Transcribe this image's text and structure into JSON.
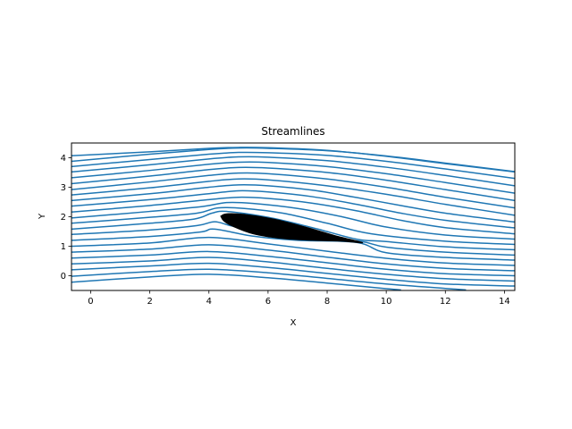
{
  "chart_data": {
    "type": "streamplot",
    "title": "Streamlines",
    "xlabel": "X",
    "ylabel": "Y",
    "xlim": [
      -0.65,
      14.35
    ],
    "ylim": [
      -0.5,
      4.5
    ],
    "x_ticks": [
      0,
      2,
      4,
      6,
      8,
      10,
      12,
      14
    ],
    "y_ticks": [
      0,
      1,
      2,
      3,
      4
    ],
    "grid": false,
    "line_color": "#1f77b4",
    "body_color": "#000000",
    "streamlines": [
      [
        [
          -0.65,
          -0.22
        ],
        [
          2.0,
          -0.04
        ],
        [
          4.0,
          0.05
        ],
        [
          6.0,
          -0.07
        ],
        [
          8.0,
          -0.25
        ],
        [
          10.0,
          -0.44
        ],
        [
          10.5,
          -0.48
        ]
      ],
      [
        [
          -0.65,
          -0.02
        ],
        [
          2.0,
          0.14
        ],
        [
          4.0,
          0.22
        ],
        [
          6.0,
          0.1
        ],
        [
          8.0,
          -0.09
        ],
        [
          10.0,
          -0.28
        ],
        [
          12.0,
          -0.43
        ],
        [
          12.7,
          -0.48
        ]
      ],
      [
        [
          -0.65,
          0.2
        ],
        [
          2.0,
          0.33
        ],
        [
          4.0,
          0.42
        ],
        [
          6.0,
          0.28
        ],
        [
          8.0,
          0.08
        ],
        [
          10.0,
          -0.12
        ],
        [
          12.0,
          -0.28
        ],
        [
          14.35,
          -0.35
        ]
      ],
      [
        [
          -0.65,
          0.4
        ],
        [
          2.0,
          0.5
        ],
        [
          4.0,
          0.62
        ],
        [
          6.0,
          0.47
        ],
        [
          8.0,
          0.25
        ],
        [
          10.0,
          0.05
        ],
        [
          12.0,
          -0.1
        ],
        [
          14.35,
          -0.18
        ]
      ],
      [
        [
          -0.65,
          0.6
        ],
        [
          2.0,
          0.7
        ],
        [
          4.0,
          0.82
        ],
        [
          6.0,
          0.66
        ],
        [
          8.0,
          0.44
        ],
        [
          10.0,
          0.22
        ],
        [
          12.0,
          0.07
        ],
        [
          14.35,
          0.0
        ]
      ],
      [
        [
          -0.65,
          0.8
        ],
        [
          2.0,
          0.9
        ],
        [
          4.0,
          1.05
        ],
        [
          6.0,
          0.87
        ],
        [
          8.0,
          0.63
        ],
        [
          10.0,
          0.4
        ],
        [
          12.0,
          0.25
        ],
        [
          14.35,
          0.17
        ]
      ],
      [
        [
          -0.65,
          1.0
        ],
        [
          2.0,
          1.11
        ],
        [
          4.0,
          1.3
        ],
        [
          6.0,
          1.08
        ],
        [
          8.0,
          0.83
        ],
        [
          10.0,
          0.59
        ],
        [
          12.0,
          0.43
        ],
        [
          14.35,
          0.35
        ]
      ],
      [
        [
          -0.65,
          1.2
        ],
        [
          2.0,
          1.33
        ],
        [
          3.7,
          1.48
        ],
        [
          4.2,
          1.58
        ],
        [
          5.5,
          1.34
        ],
        [
          7.0,
          1.2
        ],
        [
          9.0,
          1.13
        ],
        [
          10.0,
          0.78
        ],
        [
          12.0,
          0.62
        ],
        [
          14.35,
          0.53
        ]
      ],
      [
        [
          -0.65,
          1.4
        ],
        [
          2.0,
          1.55
        ],
        [
          3.6,
          1.7
        ],
        [
          4.2,
          1.83
        ],
        [
          4.8,
          1.68
        ],
        [
          6.0,
          1.46
        ],
        [
          7.5,
          1.29
        ],
        [
          9.1,
          1.17
        ],
        [
          10.0,
          0.97
        ],
        [
          12.0,
          0.8
        ],
        [
          14.35,
          0.7
        ]
      ],
      [
        [
          -0.65,
          1.58
        ],
        [
          2.0,
          1.78
        ],
        [
          3.5,
          1.92
        ],
        [
          4.1,
          2.12
        ],
        [
          4.6,
          2.18
        ],
        [
          6.0,
          1.98
        ],
        [
          7.5,
          1.63
        ],
        [
          9.0,
          1.24
        ],
        [
          10.0,
          1.16
        ],
        [
          12.0,
          0.98
        ],
        [
          14.35,
          0.88
        ]
      ],
      [
        [
          -0.65,
          1.78
        ],
        [
          2.0,
          1.98
        ],
        [
          3.6,
          2.12
        ],
        [
          4.3,
          2.3
        ],
        [
          5.2,
          2.28
        ],
        [
          6.5,
          2.12
        ],
        [
          8.0,
          1.78
        ],
        [
          9.5,
          1.42
        ],
        [
          12.0,
          1.17
        ],
        [
          14.35,
          1.06
        ]
      ],
      [
        [
          -0.65,
          1.96
        ],
        [
          2.0,
          2.18
        ],
        [
          3.8,
          2.35
        ],
        [
          4.6,
          2.48
        ],
        [
          5.5,
          2.45
        ],
        [
          7.0,
          2.28
        ],
        [
          8.5,
          2.0
        ],
        [
          10.0,
          1.65
        ],
        [
          12.0,
          1.38
        ],
        [
          14.35,
          1.24
        ]
      ],
      [
        [
          -0.65,
          2.16
        ],
        [
          2.0,
          2.38
        ],
        [
          4.0,
          2.58
        ],
        [
          5.0,
          2.66
        ],
        [
          6.0,
          2.62
        ],
        [
          7.5,
          2.46
        ],
        [
          9.0,
          2.2
        ],
        [
          10.5,
          1.88
        ],
        [
          12.0,
          1.63
        ],
        [
          14.35,
          1.42
        ]
      ],
      [
        [
          -0.65,
          2.36
        ],
        [
          2.0,
          2.58
        ],
        [
          4.0,
          2.78
        ],
        [
          5.0,
          2.88
        ],
        [
          6.0,
          2.84
        ],
        [
          7.5,
          2.68
        ],
        [
          9.0,
          2.42
        ],
        [
          10.5,
          2.12
        ],
        [
          12.0,
          1.88
        ],
        [
          14.35,
          1.62
        ]
      ],
      [
        [
          -0.65,
          2.55
        ],
        [
          2.0,
          2.78
        ],
        [
          4.0,
          3.0
        ],
        [
          5.0,
          3.08
        ],
        [
          6.0,
          3.05
        ],
        [
          7.5,
          2.9
        ],
        [
          9.0,
          2.65
        ],
        [
          10.5,
          2.38
        ],
        [
          12.0,
          2.12
        ],
        [
          14.35,
          1.82
        ]
      ],
      [
        [
          -0.65,
          2.74
        ],
        [
          2.0,
          2.98
        ],
        [
          4.0,
          3.2
        ],
        [
          5.0,
          3.28
        ],
        [
          6.0,
          3.25
        ],
        [
          8.0,
          3.05
        ],
        [
          10.0,
          2.76
        ],
        [
          12.0,
          2.42
        ],
        [
          14.35,
          2.05
        ]
      ],
      [
        [
          -0.65,
          2.92
        ],
        [
          2.0,
          3.18
        ],
        [
          4.0,
          3.4
        ],
        [
          5.0,
          3.48
        ],
        [
          6.0,
          3.46
        ],
        [
          8.0,
          3.28
        ],
        [
          10.0,
          3.0
        ],
        [
          12.0,
          2.66
        ],
        [
          14.35,
          2.3
        ]
      ],
      [
        [
          -0.65,
          3.12
        ],
        [
          2.0,
          3.38
        ],
        [
          4.0,
          3.6
        ],
        [
          5.0,
          3.67
        ],
        [
          6.0,
          3.65
        ],
        [
          8.0,
          3.5
        ],
        [
          10.0,
          3.24
        ],
        [
          12.0,
          2.92
        ],
        [
          14.35,
          2.55
        ]
      ],
      [
        [
          -0.65,
          3.32
        ],
        [
          2.0,
          3.57
        ],
        [
          4.0,
          3.78
        ],
        [
          5.0,
          3.85
        ],
        [
          6.0,
          3.84
        ],
        [
          8.0,
          3.7
        ],
        [
          10.0,
          3.46
        ],
        [
          12.0,
          3.16
        ],
        [
          14.35,
          2.8
        ]
      ],
      [
        [
          -0.65,
          3.52
        ],
        [
          2.0,
          3.76
        ],
        [
          4.0,
          3.96
        ],
        [
          5.0,
          4.03
        ],
        [
          6.0,
          4.02
        ],
        [
          8.0,
          3.9
        ],
        [
          10.0,
          3.68
        ],
        [
          12.0,
          3.4
        ],
        [
          14.35,
          3.05
        ]
      ],
      [
        [
          -0.65,
          3.7
        ],
        [
          2.0,
          3.94
        ],
        [
          4.0,
          4.12
        ],
        [
          5.0,
          4.18
        ],
        [
          6.0,
          4.17
        ],
        [
          8.0,
          4.08
        ],
        [
          10.0,
          3.88
        ],
        [
          12.0,
          3.62
        ],
        [
          14.35,
          3.3
        ]
      ],
      [
        [
          -0.65,
          3.88
        ],
        [
          2.0,
          4.12
        ],
        [
          4.0,
          4.28
        ],
        [
          5.0,
          4.33
        ],
        [
          6.0,
          4.32
        ],
        [
          8.0,
          4.24
        ],
        [
          10.0,
          4.06
        ],
        [
          12.0,
          3.82
        ],
        [
          14.35,
          3.53
        ]
      ],
      [
        [
          -0.65,
          4.07
        ],
        [
          2.0,
          4.2
        ],
        [
          4.0,
          4.32
        ],
        [
          5.0,
          4.35
        ],
        [
          6.0,
          4.34
        ],
        [
          8.0,
          4.25
        ],
        [
          10.0,
          4.05
        ],
        [
          12.0,
          3.8
        ],
        [
          14.35,
          3.52
        ]
      ]
    ],
    "body_outline": [
      [
        4.4,
        2.02
      ],
      [
        4.6,
        2.1
      ],
      [
        5.2,
        2.08
      ],
      [
        6.2,
        1.92
      ],
      [
        7.3,
        1.64
      ],
      [
        8.3,
        1.35
      ],
      [
        9.2,
        1.12
      ],
      [
        8.5,
        1.17
      ],
      [
        7.5,
        1.2
      ],
      [
        6.5,
        1.26
      ],
      [
        5.5,
        1.42
      ],
      [
        4.8,
        1.68
      ],
      [
        4.5,
        1.86
      ]
    ]
  }
}
